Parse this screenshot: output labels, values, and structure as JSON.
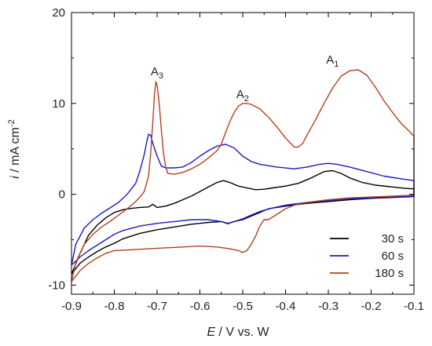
{
  "chart_data": {
    "type": "line",
    "title": "",
    "xlabel": {
      "italic": "E",
      "rest": " / V vs. W"
    },
    "ylabel": {
      "italic": "i",
      "rest": " / mA cm",
      "sup": "-2"
    },
    "xlim": [
      -0.9,
      -0.1
    ],
    "ylim": [
      -11,
      20
    ],
    "x_ticks": [
      -0.9,
      -0.8,
      -0.7,
      -0.6,
      -0.5,
      -0.4,
      -0.3,
      -0.2,
      -0.1
    ],
    "x_tick_labels": [
      "-0.9",
      "-0.8",
      "-0.7",
      "-0.6",
      "-0.5",
      "-0.4",
      "-0.3",
      "-0.2",
      "-0.1"
    ],
    "y_ticks": [
      -10,
      0,
      10,
      20
    ],
    "y_tick_labels": [
      "-10",
      "0",
      "10",
      "20"
    ],
    "grid": false,
    "legend_position": "bottom-right",
    "annotations": [
      {
        "base": "A",
        "sub": "3",
        "x": -0.715,
        "y": 13.1
      },
      {
        "base": "A",
        "sub": "2",
        "x": -0.515,
        "y": 10.6
      },
      {
        "base": "A",
        "sub": "1",
        "x": -0.305,
        "y": 14.4
      }
    ],
    "series": [
      {
        "name": "30 s",
        "color": "#000000",
        "forward": [
          [
            -0.9,
            -8.8
          ],
          [
            -0.88,
            -6.5
          ],
          [
            -0.86,
            -4.5
          ],
          [
            -0.84,
            -3.4
          ],
          [
            -0.82,
            -2.6
          ],
          [
            -0.8,
            -2.0
          ],
          [
            -0.78,
            -1.7
          ],
          [
            -0.76,
            -1.55
          ],
          [
            -0.74,
            -1.45
          ],
          [
            -0.72,
            -1.4
          ],
          [
            -0.71,
            -1.1
          ],
          [
            -0.7,
            -1.45
          ],
          [
            -0.68,
            -1.3
          ],
          [
            -0.66,
            -1.0
          ],
          [
            -0.64,
            -0.6
          ],
          [
            -0.62,
            -0.2
          ],
          [
            -0.6,
            0.3
          ],
          [
            -0.58,
            0.8
          ],
          [
            -0.56,
            1.3
          ],
          [
            -0.545,
            1.5
          ],
          [
            -0.53,
            1.3
          ],
          [
            -0.51,
            0.9
          ],
          [
            -0.49,
            0.7
          ],
          [
            -0.47,
            0.5
          ],
          [
            -0.45,
            0.55
          ],
          [
            -0.43,
            0.7
          ],
          [
            -0.4,
            0.9
          ],
          [
            -0.37,
            1.2
          ],
          [
            -0.34,
            1.8
          ],
          [
            -0.31,
            2.5
          ],
          [
            -0.29,
            2.6
          ],
          [
            -0.27,
            2.3
          ],
          [
            -0.25,
            1.8
          ],
          [
            -0.22,
            1.3
          ],
          [
            -0.19,
            1.0
          ],
          [
            -0.15,
            0.8
          ],
          [
            -0.12,
            0.65
          ],
          [
            -0.1,
            0.6
          ]
        ],
        "reverse": [
          [
            -0.1,
            -0.25
          ],
          [
            -0.15,
            -0.35
          ],
          [
            -0.2,
            -0.45
          ],
          [
            -0.25,
            -0.6
          ],
          [
            -0.3,
            -0.8
          ],
          [
            -0.35,
            -1.0
          ],
          [
            -0.4,
            -1.3
          ],
          [
            -0.44,
            -1.6
          ],
          [
            -0.46,
            -2.0
          ],
          [
            -0.48,
            -2.4
          ],
          [
            -0.5,
            -2.8
          ],
          [
            -0.52,
            -3.0
          ],
          [
            -0.535,
            -3.2
          ],
          [
            -0.55,
            -3.0
          ],
          [
            -0.58,
            -3.1
          ],
          [
            -0.62,
            -3.3
          ],
          [
            -0.66,
            -3.6
          ],
          [
            -0.7,
            -3.9
          ],
          [
            -0.74,
            -4.3
          ],
          [
            -0.78,
            -4.9
          ],
          [
            -0.8,
            -5.4
          ],
          [
            -0.82,
            -5.8
          ],
          [
            -0.84,
            -6.3
          ],
          [
            -0.86,
            -6.9
          ],
          [
            -0.88,
            -7.6
          ],
          [
            -0.9,
            -8.8
          ]
        ]
      },
      {
        "name": "60 s",
        "color": "#1a1acc",
        "forward": [
          [
            -0.9,
            -7.8
          ],
          [
            -0.89,
            -5.5
          ],
          [
            -0.87,
            -3.7
          ],
          [
            -0.85,
            -2.8
          ],
          [
            -0.83,
            -2.1
          ],
          [
            -0.81,
            -1.5
          ],
          [
            -0.79,
            -0.9
          ],
          [
            -0.77,
            0.0
          ],
          [
            -0.75,
            1.2
          ],
          [
            -0.74,
            2.6
          ],
          [
            -0.73,
            4.4
          ],
          [
            -0.725,
            5.6
          ],
          [
            -0.72,
            6.6
          ],
          [
            -0.715,
            6.5
          ],
          [
            -0.71,
            5.6
          ],
          [
            -0.7,
            4.2
          ],
          [
            -0.69,
            3.1
          ],
          [
            -0.68,
            2.9
          ],
          [
            -0.66,
            2.9
          ],
          [
            -0.64,
            3.0
          ],
          [
            -0.62,
            3.5
          ],
          [
            -0.6,
            4.2
          ],
          [
            -0.58,
            4.8
          ],
          [
            -0.56,
            5.3
          ],
          [
            -0.54,
            5.5
          ],
          [
            -0.52,
            5.1
          ],
          [
            -0.5,
            4.2
          ],
          [
            -0.48,
            3.6
          ],
          [
            -0.46,
            3.3
          ],
          [
            -0.42,
            3.0
          ],
          [
            -0.38,
            2.8
          ],
          [
            -0.35,
            3.0
          ],
          [
            -0.32,
            3.3
          ],
          [
            -0.3,
            3.4
          ],
          [
            -0.28,
            3.3
          ],
          [
            -0.25,
            3.0
          ],
          [
            -0.21,
            2.5
          ],
          [
            -0.17,
            2.0
          ],
          [
            -0.13,
            1.7
          ],
          [
            -0.1,
            1.5
          ]
        ],
        "reverse": [
          [
            -0.1,
            -0.2
          ],
          [
            -0.15,
            -0.3
          ],
          [
            -0.2,
            -0.4
          ],
          [
            -0.25,
            -0.5
          ],
          [
            -0.3,
            -0.7
          ],
          [
            -0.35,
            -0.9
          ],
          [
            -0.4,
            -1.2
          ],
          [
            -0.43,
            -1.5
          ],
          [
            -0.46,
            -1.9
          ],
          [
            -0.48,
            -2.3
          ],
          [
            -0.5,
            -2.7
          ],
          [
            -0.52,
            -3.0
          ],
          [
            -0.535,
            -3.25
          ],
          [
            -0.55,
            -3.0
          ],
          [
            -0.58,
            -2.8
          ],
          [
            -0.62,
            -2.8
          ],
          [
            -0.66,
            -3.0
          ],
          [
            -0.7,
            -3.2
          ],
          [
            -0.74,
            -3.5
          ],
          [
            -0.78,
            -4.0
          ],
          [
            -0.8,
            -4.4
          ],
          [
            -0.82,
            -5.0
          ],
          [
            -0.84,
            -5.6
          ],
          [
            -0.86,
            -6.2
          ],
          [
            -0.88,
            -6.9
          ],
          [
            -0.9,
            -7.8
          ]
        ]
      },
      {
        "name": "180 s",
        "color": "#b5401d",
        "forward": [
          [
            -0.9,
            -9.6
          ],
          [
            -0.89,
            -7.5
          ],
          [
            -0.87,
            -5.5
          ],
          [
            -0.85,
            -4.4
          ],
          [
            -0.83,
            -3.6
          ],
          [
            -0.81,
            -3.0
          ],
          [
            -0.79,
            -2.3
          ],
          [
            -0.77,
            -1.6
          ],
          [
            -0.75,
            -0.8
          ],
          [
            -0.74,
            -0.3
          ],
          [
            -0.73,
            0.3
          ],
          [
            -0.72,
            2.0
          ],
          [
            -0.715,
            4.5
          ],
          [
            -0.71,
            8.0
          ],
          [
            -0.706,
            11.0
          ],
          [
            -0.703,
            12.4
          ],
          [
            -0.7,
            12.0
          ],
          [
            -0.695,
            10.0
          ],
          [
            -0.69,
            7.0
          ],
          [
            -0.685,
            4.5
          ],
          [
            -0.68,
            3.0
          ],
          [
            -0.675,
            2.3
          ],
          [
            -0.66,
            2.2
          ],
          [
            -0.64,
            2.4
          ],
          [
            -0.62,
            2.8
          ],
          [
            -0.6,
            3.3
          ],
          [
            -0.58,
            4.0
          ],
          [
            -0.56,
            4.8
          ],
          [
            -0.55,
            5.5
          ],
          [
            -0.54,
            6.8
          ],
          [
            -0.53,
            8.0
          ],
          [
            -0.52,
            9.0
          ],
          [
            -0.51,
            9.7
          ],
          [
            -0.5,
            10.0
          ],
          [
            -0.49,
            10.0
          ],
          [
            -0.48,
            9.9
          ],
          [
            -0.46,
            9.4
          ],
          [
            -0.44,
            8.5
          ],
          [
            -0.42,
            7.4
          ],
          [
            -0.4,
            6.2
          ],
          [
            -0.38,
            5.2
          ],
          [
            -0.37,
            5.2
          ],
          [
            -0.36,
            5.6
          ],
          [
            -0.35,
            6.5
          ],
          [
            -0.33,
            8.2
          ],
          [
            -0.31,
            10.0
          ],
          [
            -0.29,
            11.7
          ],
          [
            -0.27,
            13.0
          ],
          [
            -0.25,
            13.6
          ],
          [
            -0.23,
            13.7
          ],
          [
            -0.21,
            13.1
          ],
          [
            -0.19,
            11.8
          ],
          [
            -0.17,
            10.3
          ],
          [
            -0.15,
            9.0
          ],
          [
            -0.13,
            7.8
          ],
          [
            -0.11,
            6.9
          ],
          [
            -0.1,
            6.4
          ]
        ],
        "reverse": [
          [
            -0.1,
            -0.1
          ],
          [
            -0.15,
            -0.2
          ],
          [
            -0.2,
            -0.3
          ],
          [
            -0.25,
            -0.4
          ],
          [
            -0.3,
            -0.6
          ],
          [
            -0.35,
            -0.9
          ],
          [
            -0.38,
            -1.2
          ],
          [
            -0.4,
            -1.6
          ],
          [
            -0.42,
            -2.2
          ],
          [
            -0.44,
            -2.8
          ],
          [
            -0.45,
            -2.8
          ],
          [
            -0.46,
            -3.5
          ],
          [
            -0.47,
            -4.6
          ],
          [
            -0.48,
            -5.5
          ],
          [
            -0.49,
            -6.2
          ],
          [
            -0.5,
            -6.4
          ],
          [
            -0.51,
            -6.2
          ],
          [
            -0.53,
            -6.0
          ],
          [
            -0.56,
            -5.8
          ],
          [
            -0.6,
            -5.7
          ],
          [
            -0.64,
            -5.8
          ],
          [
            -0.68,
            -5.9
          ],
          [
            -0.72,
            -6.0
          ],
          [
            -0.76,
            -6.1
          ],
          [
            -0.8,
            -6.2
          ],
          [
            -0.82,
            -6.5
          ],
          [
            -0.84,
            -7.0
          ],
          [
            -0.86,
            -7.6
          ],
          [
            -0.88,
            -8.4
          ],
          [
            -0.9,
            -9.6
          ]
        ]
      }
    ]
  }
}
